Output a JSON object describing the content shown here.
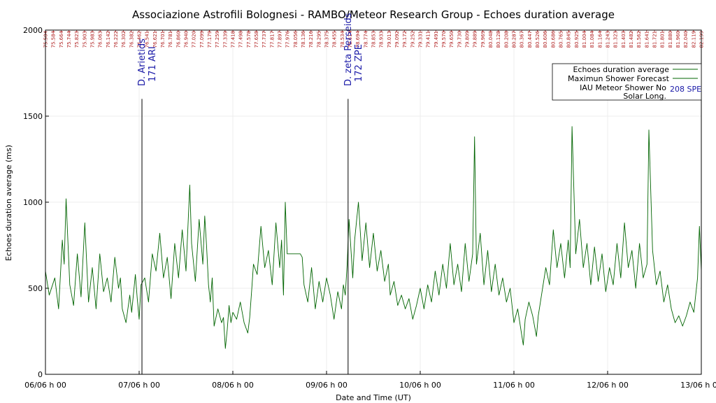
{
  "chart_data": {
    "type": "line",
    "title": "Associazione Astrofili Bolognesi - RAMBO/Meteor Research Group - Echoes duration average",
    "xlabel": "Date and Time (UT)",
    "ylabel": "Echoes duration average (ms)",
    "ylim": [
      0,
      2000
    ],
    "xlim_days": [
      0,
      7
    ],
    "y_ticks": [
      0,
      500,
      1000,
      1500,
      2000
    ],
    "x_ticks": [
      {
        "day": 0,
        "label": "06/06 h 00"
      },
      {
        "day": 1,
        "label": "07/06 h 00"
      },
      {
        "day": 2,
        "label": "08/06 h 00"
      },
      {
        "day": 3,
        "label": "09/06 h 00"
      },
      {
        "day": 4,
        "label": "10/06 h 00"
      },
      {
        "day": 5,
        "label": "11/06 h 00"
      },
      {
        "day": 6,
        "label": "12/06 h 00"
      },
      {
        "day": 7,
        "label": "13/06 h 00"
      }
    ],
    "solar_longitude_ticks": [
      "75.504",
      "75.584",
      "75.664",
      "75.744",
      "75.823",
      "75.903",
      "75.983",
      "76.063",
      "76.142",
      "76.222",
      "76.302",
      "76.382",
      "76.462",
      "76.541",
      "76.621",
      "76.701",
      "76.781",
      "76.860",
      "76.940",
      "77.020",
      "77.099",
      "77.179",
      "77.259",
      "77.339",
      "77.418",
      "77.498",
      "77.578",
      "77.658",
      "77.737",
      "77.817",
      "77.897",
      "77.976",
      "78.056",
      "78.136",
      "78.216",
      "78.295",
      "78.375",
      "78.455",
      "78.534",
      "78.614",
      "78.694",
      "78.774",
      "78.853",
      "78.933",
      "79.013",
      "79.092",
      "79.172",
      "79.252",
      "79.331",
      "79.411",
      "79.491",
      "79.570",
      "79.650",
      "79.730",
      "79.809",
      "79.889",
      "79.969",
      "80.048",
      "80.128",
      "80.208",
      "80.287",
      "80.367",
      "80.447",
      "80.526",
      "80.606",
      "80.686",
      "80.765",
      "80.845",
      "80.925",
      "81.004",
      "81.084",
      "81.164",
      "81.243",
      "81.323",
      "81.403",
      "81.482",
      "81.562",
      "81.641",
      "81.721",
      "81.801",
      "81.880",
      "81.960",
      "82.040",
      "82.119",
      "82.199"
    ],
    "showers": [
      {
        "name": "D. Arietids",
        "code": "171 ARI",
        "day": 1.03,
        "peak_value": 1600
      },
      {
        "name": "D. zeta Perseids",
        "code": "172 ZPE",
        "day": 3.23,
        "peak_value": 1600
      }
    ],
    "legend": {
      "position": "top-right",
      "entries": [
        "Echoes duration average",
        "Maximun Shower Forecast",
        "IAU Meteor Shower No",
        "Solar Long."
      ],
      "extra": "208 SPE"
    },
    "series": [
      {
        "name": "Echoes duration average",
        "color": "#006400",
        "points": [
          [
            0.0,
            600
          ],
          [
            0.04,
            460
          ],
          [
            0.1,
            560
          ],
          [
            0.14,
            380
          ],
          [
            0.18,
            780
          ],
          [
            0.2,
            640
          ],
          [
            0.22,
            1020
          ],
          [
            0.26,
            520
          ],
          [
            0.3,
            400
          ],
          [
            0.34,
            700
          ],
          [
            0.38,
            450
          ],
          [
            0.42,
            880
          ],
          [
            0.46,
            420
          ],
          [
            0.5,
            620
          ],
          [
            0.54,
            380
          ],
          [
            0.58,
            700
          ],
          [
            0.62,
            480
          ],
          [
            0.66,
            560
          ],
          [
            0.7,
            420
          ],
          [
            0.74,
            680
          ],
          [
            0.78,
            500
          ],
          [
            0.8,
            560
          ],
          [
            0.82,
            380
          ],
          [
            0.86,
            300
          ],
          [
            0.9,
            460
          ],
          [
            0.92,
            360
          ],
          [
            0.96,
            580
          ],
          [
            0.98,
            440
          ],
          [
            1.0,
            320
          ],
          [
            1.02,
            520
          ],
          [
            1.06,
            560
          ],
          [
            1.1,
            420
          ],
          [
            1.14,
            700
          ],
          [
            1.18,
            600
          ],
          [
            1.22,
            820
          ],
          [
            1.26,
            560
          ],
          [
            1.3,
            680
          ],
          [
            1.34,
            440
          ],
          [
            1.38,
            760
          ],
          [
            1.42,
            560
          ],
          [
            1.46,
            840
          ],
          [
            1.5,
            600
          ],
          [
            1.54,
            1100
          ],
          [
            1.56,
            760
          ],
          [
            1.6,
            540
          ],
          [
            1.64,
            900
          ],
          [
            1.68,
            640
          ],
          [
            1.7,
            920
          ],
          [
            1.72,
            740
          ],
          [
            1.74,
            520
          ],
          [
            1.76,
            420
          ],
          [
            1.78,
            560
          ],
          [
            1.8,
            280
          ],
          [
            1.84,
            380
          ],
          [
            1.88,
            300
          ],
          [
            1.9,
            330
          ],
          [
            1.92,
            150
          ],
          [
            1.94,
            260
          ],
          [
            1.96,
            400
          ],
          [
            1.98,
            300
          ],
          [
            2.0,
            360
          ],
          [
            2.04,
            320
          ],
          [
            2.08,
            420
          ],
          [
            2.12,
            300
          ],
          [
            2.16,
            240
          ],
          [
            2.18,
            330
          ],
          [
            2.2,
            480
          ],
          [
            2.22,
            640
          ],
          [
            2.26,
            580
          ],
          [
            2.3,
            860
          ],
          [
            2.34,
            620
          ],
          [
            2.38,
            720
          ],
          [
            2.42,
            520
          ],
          [
            2.46,
            880
          ],
          [
            2.5,
            620
          ],
          [
            2.52,
            780
          ],
          [
            2.54,
            460
          ],
          [
            2.56,
            1000
          ],
          [
            2.58,
            700
          ],
          [
            2.6,
            700
          ],
          [
            2.64,
            700
          ],
          [
            2.68,
            700
          ],
          [
            2.72,
            700
          ],
          [
            2.74,
            680
          ],
          [
            2.76,
            520
          ],
          [
            2.8,
            420
          ],
          [
            2.84,
            620
          ],
          [
            2.88,
            380
          ],
          [
            2.92,
            540
          ],
          [
            2.96,
            420
          ],
          [
            3.0,
            560
          ],
          [
            3.04,
            460
          ],
          [
            3.08,
            320
          ],
          [
            3.12,
            480
          ],
          [
            3.16,
            380
          ],
          [
            3.18,
            520
          ],
          [
            3.2,
            460
          ],
          [
            3.22,
            640
          ],
          [
            3.24,
            900
          ],
          [
            3.28,
            560
          ],
          [
            3.3,
            780
          ],
          [
            3.34,
            1000
          ],
          [
            3.38,
            660
          ],
          [
            3.42,
            880
          ],
          [
            3.46,
            620
          ],
          [
            3.5,
            820
          ],
          [
            3.54,
            600
          ],
          [
            3.58,
            720
          ],
          [
            3.62,
            540
          ],
          [
            3.66,
            640
          ],
          [
            3.68,
            460
          ],
          [
            3.72,
            540
          ],
          [
            3.76,
            400
          ],
          [
            3.8,
            460
          ],
          [
            3.84,
            380
          ],
          [
            3.88,
            440
          ],
          [
            3.92,
            320
          ],
          [
            3.96,
            400
          ],
          [
            4.0,
            500
          ],
          [
            4.04,
            380
          ],
          [
            4.08,
            520
          ],
          [
            4.12,
            420
          ],
          [
            4.16,
            600
          ],
          [
            4.2,
            460
          ],
          [
            4.24,
            640
          ],
          [
            4.28,
            500
          ],
          [
            4.32,
            760
          ],
          [
            4.36,
            520
          ],
          [
            4.4,
            640
          ],
          [
            4.44,
            480
          ],
          [
            4.48,
            760
          ],
          [
            4.52,
            540
          ],
          [
            4.56,
            700
          ],
          [
            4.58,
            1380
          ],
          [
            4.6,
            640
          ],
          [
            4.64,
            820
          ],
          [
            4.68,
            520
          ],
          [
            4.72,
            720
          ],
          [
            4.76,
            480
          ],
          [
            4.8,
            640
          ],
          [
            4.84,
            460
          ],
          [
            4.88,
            560
          ],
          [
            4.92,
            420
          ],
          [
            4.96,
            500
          ],
          [
            5.0,
            300
          ],
          [
            5.04,
            380
          ],
          [
            5.08,
            240
          ],
          [
            5.1,
            170
          ],
          [
            5.12,
            320
          ],
          [
            5.16,
            420
          ],
          [
            5.2,
            340
          ],
          [
            5.24,
            220
          ],
          [
            5.26,
            340
          ],
          [
            5.3,
            480
          ],
          [
            5.34,
            620
          ],
          [
            5.38,
            520
          ],
          [
            5.42,
            840
          ],
          [
            5.46,
            620
          ],
          [
            5.5,
            760
          ],
          [
            5.54,
            560
          ],
          [
            5.58,
            780
          ],
          [
            5.6,
            620
          ],
          [
            5.62,
            1440
          ],
          [
            5.66,
            700
          ],
          [
            5.7,
            900
          ],
          [
            5.74,
            620
          ],
          [
            5.78,
            760
          ],
          [
            5.82,
            520
          ],
          [
            5.86,
            740
          ],
          [
            5.9,
            540
          ],
          [
            5.94,
            700
          ],
          [
            5.98,
            480
          ],
          [
            6.02,
            620
          ],
          [
            6.06,
            520
          ],
          [
            6.1,
            760
          ],
          [
            6.14,
            560
          ],
          [
            6.18,
            880
          ],
          [
            6.22,
            620
          ],
          [
            6.26,
            720
          ],
          [
            6.3,
            500
          ],
          [
            6.34,
            760
          ],
          [
            6.38,
            560
          ],
          [
            6.42,
            640
          ],
          [
            6.44,
            1420
          ],
          [
            6.48,
            720
          ],
          [
            6.52,
            520
          ],
          [
            6.56,
            600
          ],
          [
            6.6,
            420
          ],
          [
            6.64,
            520
          ],
          [
            6.68,
            380
          ],
          [
            6.72,
            300
          ],
          [
            6.76,
            340
          ],
          [
            6.8,
            280
          ],
          [
            6.84,
            340
          ],
          [
            6.88,
            420
          ],
          [
            6.92,
            360
          ],
          [
            6.96,
            560
          ],
          [
            6.98,
            860
          ],
          [
            7.0,
            600
          ]
        ]
      }
    ]
  }
}
